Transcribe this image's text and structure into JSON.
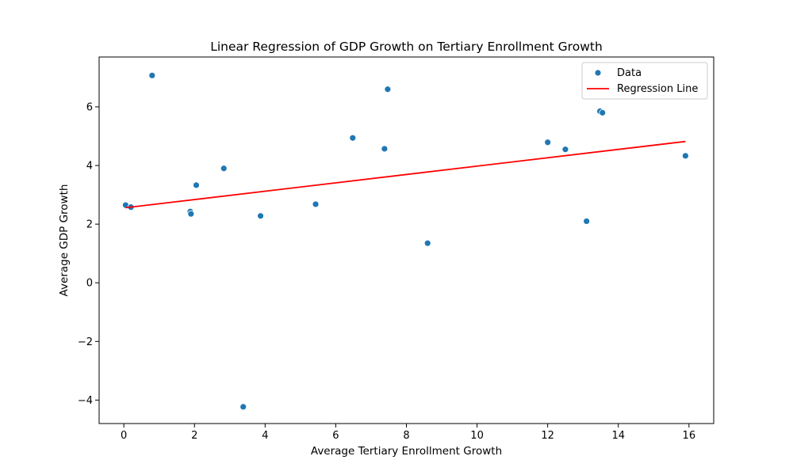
{
  "chart_data": {
    "type": "scatter",
    "title": "Linear Regression of GDP Growth on Tertiary Enrollment Growth",
    "xlabel": "Average Tertiary Enrollment Growth",
    "ylabel": "Average GDP Growth",
    "xlim": [
      -0.7,
      16.7
    ],
    "ylim": [
      -4.8,
      7.7
    ],
    "xticks": [
      0,
      2,
      4,
      6,
      8,
      10,
      12,
      14,
      16
    ],
    "yticks": [
      -4,
      -2,
      0,
      2,
      4,
      6
    ],
    "xtick_labels": [
      "0",
      "2",
      "4",
      "6",
      "8",
      "10",
      "12",
      "14",
      "16"
    ],
    "ytick_labels": [
      "−4",
      "−2",
      "0",
      "2",
      "4",
      "6"
    ],
    "grid": false,
    "legend_position": "top-right",
    "series": [
      {
        "name": "Data",
        "type": "scatter",
        "color": "#1f77b4",
        "points": [
          {
            "x": 0.05,
            "y": 2.65
          },
          {
            "x": 0.2,
            "y": 2.58
          },
          {
            "x": 0.8,
            "y": 7.07
          },
          {
            "x": 1.88,
            "y": 2.43
          },
          {
            "x": 1.9,
            "y": 2.35
          },
          {
            "x": 2.05,
            "y": 3.33
          },
          {
            "x": 2.83,
            "y": 3.9
          },
          {
            "x": 3.38,
            "y": -4.23
          },
          {
            "x": 3.87,
            "y": 2.28
          },
          {
            "x": 5.43,
            "y": 2.68
          },
          {
            "x": 6.48,
            "y": 4.94
          },
          {
            "x": 7.38,
            "y": 4.57
          },
          {
            "x": 7.47,
            "y": 6.6
          },
          {
            "x": 8.6,
            "y": 1.35
          },
          {
            "x": 12.0,
            "y": 4.79
          },
          {
            "x": 12.5,
            "y": 4.55
          },
          {
            "x": 13.1,
            "y": 2.1
          },
          {
            "x": 13.48,
            "y": 5.85
          },
          {
            "x": 13.55,
            "y": 5.8
          },
          {
            "x": 15.9,
            "y": 4.33
          }
        ]
      },
      {
        "name": "Regression Line",
        "type": "line",
        "color": "#ff0000",
        "points": [
          {
            "x": 0.05,
            "y": 2.56
          },
          {
            "x": 15.9,
            "y": 4.82
          }
        ]
      }
    ]
  }
}
